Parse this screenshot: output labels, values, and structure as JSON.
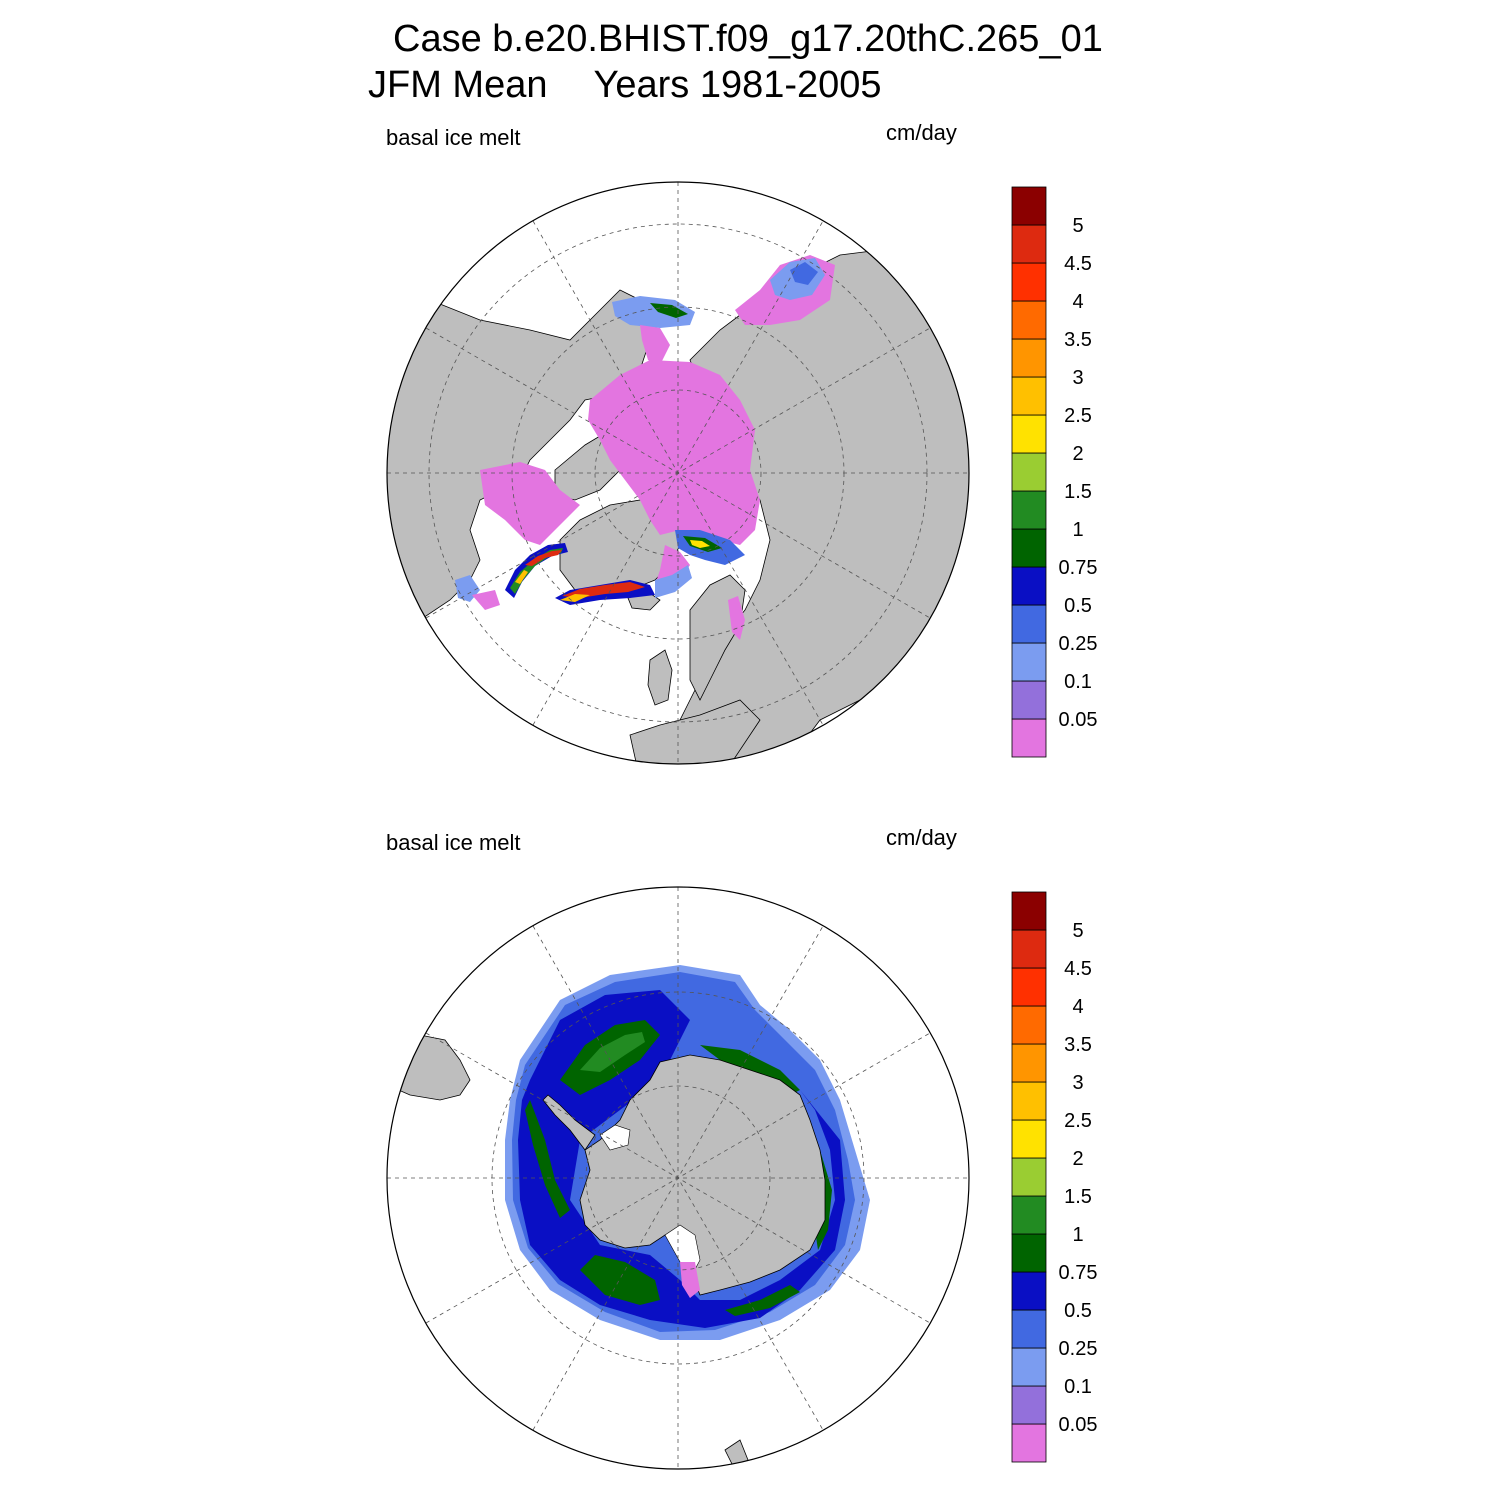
{
  "header": {
    "case_line": "Case b.e20.BHIST.f09_g17.20thC.265_01",
    "season": "JFM Mean",
    "years": "Years 1981-2005"
  },
  "panels": [
    {
      "id": "north",
      "hemisphere": "Arctic (north polar stereographic)",
      "left_label": "basal ice melt",
      "right_label": "cm/day"
    },
    {
      "id": "south",
      "hemisphere": "Antarctic (south polar stereographic)",
      "left_label": "basal ice melt",
      "right_label": "cm/day"
    }
  ],
  "colorbar": {
    "units": "cm/day",
    "levels": [
      "0.05",
      "0.1",
      "0.25",
      "0.5",
      "0.75",
      "1",
      "1.5",
      "2",
      "2.5",
      "3",
      "3.5",
      "4",
      "4.5",
      "5"
    ],
    "colors": [
      "#e375e0",
      "#9370db",
      "#7b9cf0",
      "#4169e1",
      "#0a0fc4",
      "#006400",
      "#228b22",
      "#9acd32",
      "#ffe200",
      "#ffc000",
      "#ff9500",
      "#ff6a00",
      "#ff3000",
      "#dd2a10",
      "#8b0000"
    ]
  },
  "map_colors": {
    "land": "#bebebe",
    "ocean": "#ffffff",
    "grid": "#555555"
  }
}
